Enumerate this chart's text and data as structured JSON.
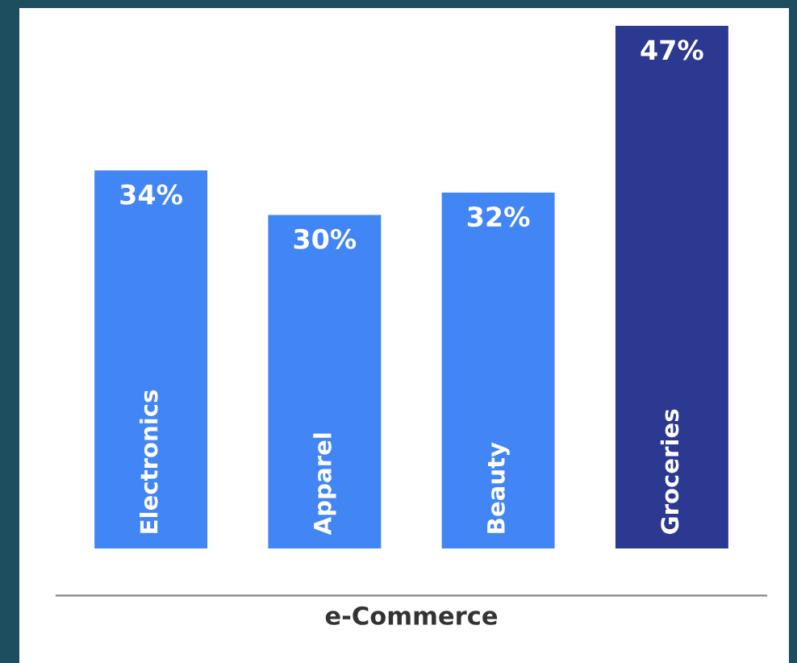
{
  "chart_data": {
    "type": "bar",
    "categories": [
      "Electronics",
      "Apparel",
      "Beauty",
      "Groceries"
    ],
    "values": [
      34,
      30,
      32,
      47
    ],
    "colors": [
      "#4285f4",
      "#4285f4",
      "#4285f4",
      "#2b3990"
    ],
    "value_labels": [
      "34%",
      "30%",
      "32%",
      "47%"
    ],
    "xlabel": "e-Commerce",
    "legend": false
  }
}
